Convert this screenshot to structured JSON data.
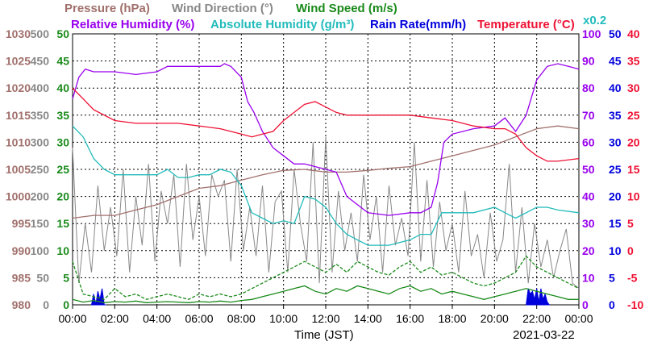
{
  "chart_data": {
    "type": "line",
    "date_label": "2021-03-22",
    "xlabel": "Time (JST)",
    "x_ticks": [
      "00:00",
      "02:00",
      "04:00",
      "06:00",
      "08:00",
      "10:00",
      "12:00",
      "14:00",
      "16:00",
      "18:00",
      "20:00",
      "22:00",
      "00:00"
    ],
    "x_range_hours": [
      0,
      24
    ],
    "grid": true,
    "legend": [
      {
        "name": "Pressure (hPa)",
        "color": "#a0706c"
      },
      {
        "name": "Wind Direction (°)",
        "color": "#888888"
      },
      {
        "name": "Wind Speed (m/s)",
        "color": "#1a8a1a"
      },
      {
        "name": "Relative Humidity (%)",
        "color": "#9900ee"
      },
      {
        "name": "Absolute Humidity (g/m³)",
        "color": "#22bbbb"
      },
      {
        "name": "Rain Rate(mm/h)",
        "color": "#0000dd"
      },
      {
        "name": "Temperature (°C)",
        "color": "#ee1133"
      }
    ],
    "rain_scale_note": "x0.2",
    "axes": {
      "pressure": {
        "color": "#a0706c",
        "range": [
          980,
          1030
        ],
        "ticks": [
          "1030",
          "1025",
          "1020",
          "1015",
          "1010",
          "1005",
          "1000",
          "995",
          "990",
          "985",
          "980"
        ]
      },
      "wind_direction": {
        "color": "#888888",
        "range": [
          0,
          500
        ],
        "ticks": [
          "500",
          "450",
          "400",
          "350",
          "300",
          "250",
          "200",
          "150",
          "100",
          "50",
          "0"
        ]
      },
      "wind_speed": {
        "color": "#1a8a1a",
        "range": [
          0,
          50
        ],
        "ticks": [
          "50",
          "45",
          "40",
          "35",
          "30",
          "25",
          "20",
          "15",
          "10",
          "5",
          "0"
        ]
      },
      "humidity": {
        "color": "#9900ee",
        "range": [
          0,
          100
        ],
        "ticks": [
          "100",
          "90",
          "80",
          "70",
          "60",
          "50",
          "40",
          "30",
          "20",
          "10",
          "0"
        ]
      },
      "rain_rate": {
        "color": "#0000dd",
        "range": [
          0,
          50
        ],
        "ticks": [
          "50",
          "45",
          "40",
          "35",
          "30",
          "25",
          "20",
          "15",
          "10",
          "5",
          "0"
        ]
      },
      "temperature": {
        "color": "#ee1133",
        "range": [
          -10,
          40
        ],
        "ticks": [
          "40",
          "35",
          "30",
          "25",
          "20",
          "15",
          "10",
          "5",
          "0",
          "-5",
          "-10"
        ]
      }
    },
    "series": [
      {
        "key": "pressure",
        "axis": "pressure",
        "color": "#a0706c",
        "x": [
          0,
          1,
          2,
          3,
          4,
          5,
          6,
          7,
          8,
          9,
          10,
          11,
          12,
          13,
          14,
          15,
          16,
          17,
          18,
          19,
          20,
          21,
          22,
          23,
          24
        ],
        "y": [
          996,
          996.5,
          996.5,
          997.5,
          998.5,
          1000,
          1001.5,
          1002,
          1003,
          1004,
          1004.8,
          1005,
          1004.5,
          1004.5,
          1004.8,
          1005.2,
          1005.5,
          1006.5,
          1007.5,
          1008.5,
          1009.5,
          1011,
          1012.5,
          1013,
          1012.5
        ]
      },
      {
        "key": "wind_direction",
        "axis": "wind_direction",
        "color": "#888888",
        "x": [
          0,
          0.3,
          0.6,
          0.9,
          1.2,
          1.5,
          1.8,
          2.1,
          2.4,
          2.7,
          3,
          3.3,
          3.6,
          3.9,
          4.2,
          4.5,
          4.8,
          5.1,
          5.4,
          5.7,
          6,
          6.3,
          6.6,
          6.9,
          7.2,
          7.5,
          7.8,
          8.1,
          8.4,
          8.7,
          9,
          9.3,
          9.6,
          9.9,
          10.2,
          10.5,
          10.8,
          11.1,
          11.4,
          11.7,
          12,
          12.3,
          12.6,
          12.9,
          13.2,
          13.5,
          13.8,
          14.1,
          14.4,
          14.7,
          15,
          15.3,
          15.6,
          15.9,
          16.2,
          16.5,
          16.8,
          17.1,
          17.4,
          17.7,
          18,
          18.3,
          18.6,
          18.9,
          19.2,
          19.5,
          19.8,
          20.1,
          20.4,
          20.7,
          21,
          21.3,
          21.6,
          21.9,
          22.2,
          22.5,
          22.8,
          23.1,
          23.4,
          23.7,
          24
        ],
        "y": [
          290,
          40,
          150,
          60,
          220,
          100,
          180,
          90,
          250,
          60,
          200,
          110,
          260,
          80,
          210,
          150,
          240,
          70,
          260,
          120,
          200,
          90,
          240,
          200,
          230,
          80,
          250,
          100,
          180,
          90,
          220,
          60,
          190,
          210,
          60,
          250,
          150,
          80,
          300,
          40,
          310,
          60,
          210,
          100,
          170,
          80,
          240,
          120,
          200,
          60,
          220,
          110,
          160,
          90,
          300,
          80,
          230,
          70,
          190,
          100,
          150,
          60,
          210,
          90,
          130,
          50,
          170,
          80,
          120,
          260,
          60,
          180,
          40,
          150,
          70,
          120,
          50,
          100,
          140,
          40,
          30
        ]
      },
      {
        "key": "wind_speed",
        "axis": "wind_speed",
        "color": "#1a8a1a",
        "x": [
          0,
          0.5,
          1,
          1.5,
          2,
          2.5,
          3,
          3.5,
          4,
          4.5,
          5,
          5.5,
          6,
          6.5,
          7,
          7.5,
          8,
          8.5,
          9,
          9.5,
          10,
          10.5,
          11,
          11.5,
          12,
          12.5,
          13,
          13.5,
          14,
          14.5,
          15,
          15.5,
          16,
          16.5,
          17,
          17.5,
          18,
          18.5,
          19,
          19.5,
          20,
          20.5,
          21,
          21.5,
          22,
          22.5,
          23,
          23.5,
          24
        ],
        "y": [
          1,
          0.5,
          0.8,
          0.4,
          0.6,
          0.5,
          0.7,
          0.4,
          0.5,
          0.6,
          0.5,
          0.4,
          0.6,
          0.5,
          0.7,
          0.5,
          0.8,
          1,
          1.5,
          2,
          2.5,
          3,
          3.5,
          2.5,
          2,
          3,
          2.5,
          3.5,
          3,
          2.5,
          2,
          3,
          3.5,
          2.5,
          3,
          2,
          2.5,
          2,
          1.5,
          1,
          1.5,
          2,
          2.5,
          3,
          2.5,
          2,
          1.5,
          1,
          1
        ]
      },
      {
        "key": "wind_gust",
        "axis": "wind_speed",
        "color": "#1a8a1a",
        "dashed": true,
        "x": [
          0,
          0.5,
          1,
          1.5,
          2,
          2.5,
          3,
          3.5,
          4,
          4.5,
          5,
          5.5,
          6,
          6.5,
          7,
          7.5,
          8,
          8.5,
          9,
          9.5,
          10,
          10.5,
          11,
          11.5,
          12,
          12.5,
          13,
          13.5,
          14,
          14.5,
          15,
          15.5,
          16,
          16.5,
          17,
          17.5,
          18,
          18.5,
          19,
          19.5,
          20,
          20.5,
          21,
          21.5,
          22,
          22.5,
          23,
          23.5,
          24
        ],
        "y": [
          8,
          2,
          1.5,
          1,
          3,
          1.5,
          2,
          1,
          1.5,
          2,
          1.5,
          1,
          2,
          1.5,
          2,
          1.5,
          2,
          3,
          4,
          5,
          6,
          7,
          8,
          7,
          6,
          7.5,
          6,
          8,
          7,
          6,
          5.5,
          7,
          8,
          6,
          7,
          5.5,
          6,
          5,
          4,
          3.5,
          4,
          5,
          6,
          9,
          7,
          6,
          5,
          4,
          3
        ]
      },
      {
        "key": "relative_humidity",
        "axis": "humidity",
        "color": "#9900ee",
        "x": [
          0,
          0.3,
          0.6,
          1,
          2,
          3,
          4,
          4.5,
          5,
          6,
          6.5,
          7,
          7.2,
          7.5,
          8,
          8.3,
          8.6,
          9,
          9.5,
          10,
          10.5,
          11,
          11.5,
          12,
          12.5,
          13,
          14,
          15,
          16,
          16.5,
          17,
          17.3,
          17.6,
          18,
          19,
          20,
          20.5,
          21,
          21.5,
          22,
          22.5,
          23,
          23.5,
          24
        ],
        "y": [
          76,
          84,
          87,
          86,
          86,
          85,
          86,
          88,
          88,
          88,
          88,
          88,
          89,
          88,
          84,
          75,
          71,
          64,
          58,
          55,
          52,
          52,
          51,
          50,
          49,
          40,
          34,
          33,
          34,
          34,
          36,
          45,
          60,
          63,
          65,
          66,
          69,
          64,
          70,
          83,
          88,
          89,
          88,
          87
        ]
      },
      {
        "key": "absolute_humidity",
        "axis": "wind_speed",
        "color": "#22bbbb",
        "x": [
          0,
          0.5,
          1,
          1.5,
          2,
          3,
          4,
          4.5,
          5,
          5.5,
          6,
          6.5,
          7,
          7.5,
          8,
          8.5,
          9,
          9.5,
          10,
          10.5,
          11,
          11.5,
          12,
          12.5,
          13,
          13.5,
          14,
          15,
          16,
          16.5,
          17,
          17.5,
          18,
          19,
          20,
          20.5,
          21,
          21.5,
          22,
          22.5,
          23,
          24
        ],
        "y": [
          33,
          31,
          27,
          25,
          24,
          24,
          24,
          25,
          23.5,
          23.5,
          24,
          24,
          25,
          24.5,
          22,
          17,
          16,
          15,
          15.5,
          15,
          20,
          19.5,
          18,
          15,
          13,
          12,
          11,
          11,
          12,
          13,
          13,
          17,
          17,
          17,
          18,
          17,
          16,
          17,
          18,
          18,
          17.5,
          17
        ]
      },
      {
        "key": "temperature",
        "axis": "temperature",
        "color": "#ee1133",
        "x": [
          0,
          0.5,
          1,
          1.5,
          2,
          3,
          4,
          5,
          6,
          7,
          8,
          8.5,
          9,
          9.5,
          10,
          10.5,
          11,
          11.5,
          12,
          12.5,
          13,
          14,
          15,
          16,
          17,
          18,
          19,
          20,
          20.5,
          21,
          21.5,
          22,
          22.5,
          23,
          24
        ],
        "y": [
          30,
          28,
          26,
          25,
          24,
          23.5,
          23.5,
          23.5,
          23,
          22.5,
          21.5,
          21,
          21.5,
          22,
          24,
          25.5,
          27,
          27.5,
          26.5,
          25.5,
          25,
          25,
          25,
          25,
          24.5,
          24,
          23,
          22.5,
          22.5,
          21.5,
          19,
          17.5,
          16.5,
          16.5,
          17
        ]
      },
      {
        "key": "rain_rate",
        "axis": "rain_rate",
        "color": "#0000dd",
        "fill": true,
        "x": [
          0.9,
          1,
          1.1,
          1.2,
          1.3,
          1.4,
          1.5,
          1.6,
          21.5,
          21.6,
          21.7,
          21.8,
          21.9,
          22,
          22.1,
          22.2,
          22.3,
          22.4,
          22.5,
          22.6
        ],
        "y": [
          0,
          2,
          0,
          2.5,
          1,
          3,
          0,
          0,
          0,
          3,
          2,
          2.5,
          1,
          3,
          0.5,
          3,
          1,
          2,
          0.5,
          0
        ]
      }
    ]
  }
}
